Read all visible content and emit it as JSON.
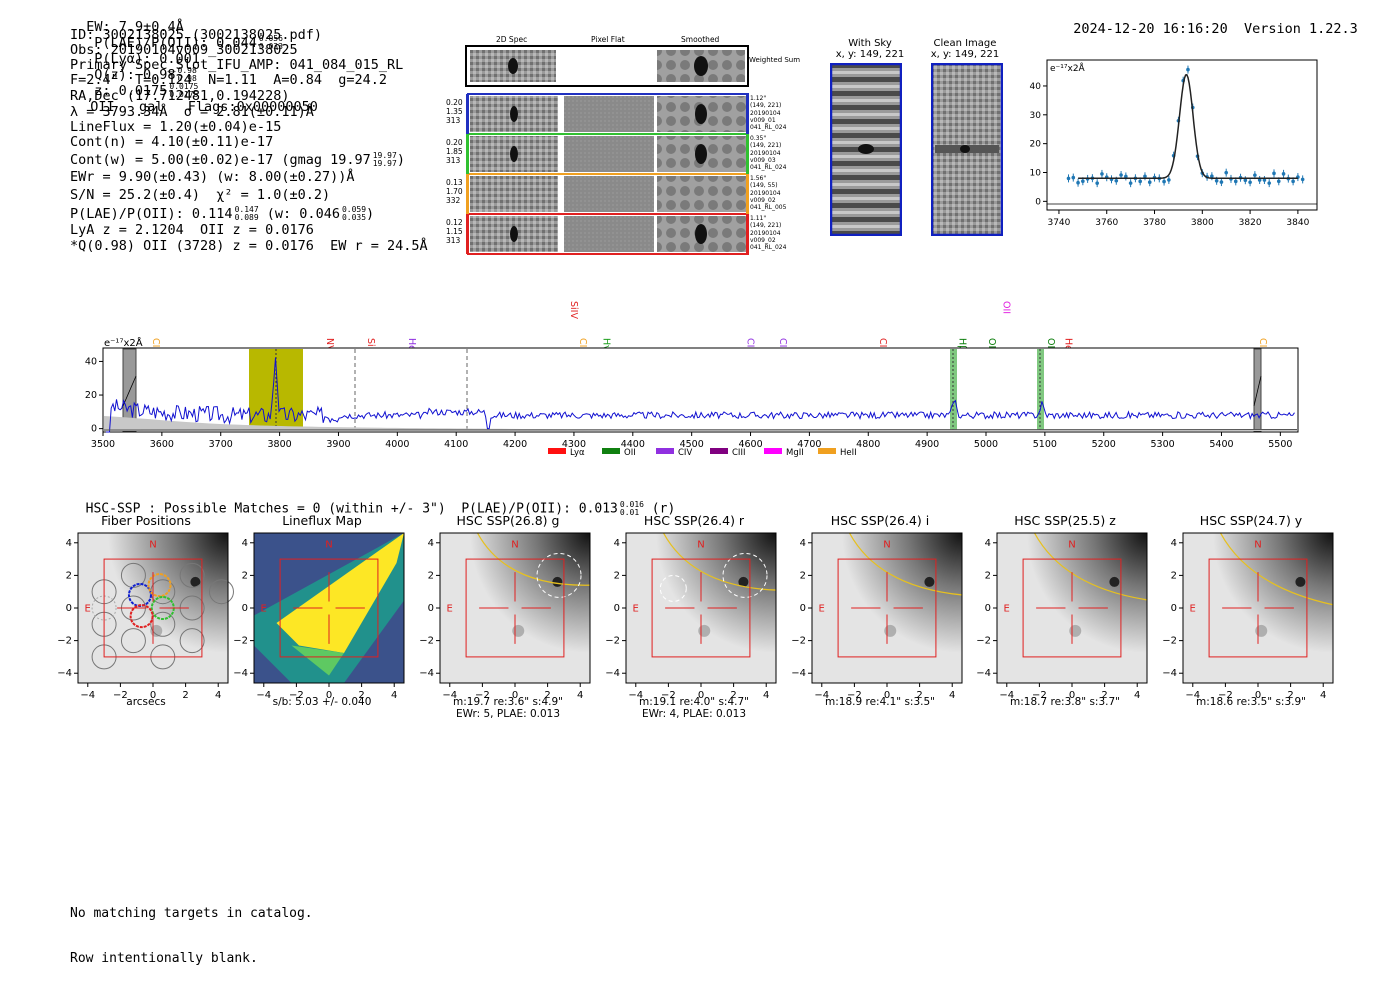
{
  "header": {
    "ew": "EW: 7.9±0.4Å",
    "plae_label": "P(LAE)/P(OII): 0.044",
    "plae_hi": "0.056",
    "plae_lo": "0.033",
    "plya": "P(Lyα): 0.001",
    "qz_label": "Q(z): 0.98",
    "qz_hi": "0.98",
    "qz_lo": "0.98",
    "z_label": "z: 0.0175",
    "z_hi": "0.0175",
    "z_lo": "0.0175",
    "z_tail": "OII   gal   Flags:0x00000050",
    "datetime": "2024-12-20 16:16:20",
    "version": "Version 1.22.3"
  },
  "info": {
    "id": "ID: 3002138025 (3002138025.pdf)",
    "obs": "Obs: 20190104v009_3002138025",
    "slot": "Primary Spec_Slot_IFU_AMP: 041_084_015_RL",
    "params": "F=2.4\"  T=0.124  N=1.11  A=0.84  g=24.2",
    "radec": "RA,Dec (17.712481,0.194228)",
    "lambda": "λ = 3793.34Å  σ = 2.81(±0.11)Å",
    "lineflux": "LineFlux = 1.20(±0.04)e-15",
    "contn": "Cont(n) = 4.10(±0.11)e-17",
    "contw": "Cont(w) = 5.00(±0.02)e-17 (gmag 19.97",
    "contw_hi": "19.97",
    "contw_lo": "19.97",
    "contw_end": ")",
    "ewr": "EWr = 9.90(±0.43) (w: 8.00(±0.27))Å",
    "sn": "S/N = 25.2(±0.4)  χ² = 1.0(±0.2)",
    "plae2": "P(LAE)/P(OII): 0.114",
    "plae2_hi": "0.147",
    "plae2_lo": "0.089",
    "plae2_w": "(w: 0.046",
    "plae2_w_hi": "0.059",
    "plae2_w_lo": "0.035",
    "plae2_end": ")",
    "lya": "LyA z = 2.1204  OII z = 0.0176",
    "q": "*Q(0.98) OII (3728) z = 0.0176  EW r = 24.5Å"
  },
  "cutouts": {
    "col_labels": [
      "2D Spec",
      "Pixel Flat",
      "Smoothed"
    ],
    "weighted_sum": "Weighted Sum",
    "rows": [
      {
        "vals": [
          "0.20",
          "1.35",
          "313"
        ],
        "meta": [
          "1.12\"",
          "(149, 221)",
          "20190104",
          "v009_01",
          "041_RL_024"
        ],
        "color": "#2030c0"
      },
      {
        "vals": [
          "0.20",
          "1.85",
          "313"
        ],
        "meta": [
          "0.35\"",
          "(149, 221)",
          "20190104",
          "v009_03",
          "041_RL_024"
        ],
        "color": "#30c030"
      },
      {
        "vals": [
          "0.13",
          "1.70",
          "332"
        ],
        "meta": [
          "1.56\"",
          "(149, 55)",
          "20190104",
          "v009_02",
          "041_RL_005"
        ],
        "color": "#f0a020"
      },
      {
        "vals": [
          "0.12",
          "1.15",
          "313"
        ],
        "meta": [
          "1.11\"",
          "(149, 221)",
          "20190104",
          "v009_02",
          "041_RL_024"
        ],
        "color": "#e02020"
      }
    ],
    "with_sky": {
      "title": "With Sky",
      "coords": "x, y: 149, 221"
    },
    "clean": {
      "title": "Clean Image",
      "coords": "x, y: 149, 221"
    }
  },
  "fit_plot": {
    "ylabel": "e⁻¹⁷x2Å",
    "xticks": [
      "3740",
      "3760",
      "3780",
      "3800",
      "3820",
      "3840"
    ],
    "yticks": [
      "0",
      "10",
      "20",
      "30",
      "40"
    ]
  },
  "spectrum": {
    "ylabel": "e⁻¹⁷x2Å",
    "xticks": [
      "3500",
      "3600",
      "3700",
      "3800",
      "3900",
      "4000",
      "4100",
      "4200",
      "4300",
      "4400",
      "4500",
      "4600",
      "4700",
      "4800",
      "4900",
      "5000",
      "5100",
      "5200",
      "5300",
      "5400",
      "5500"
    ],
    "yticks": [
      "0",
      "20",
      "40"
    ],
    "lines": [
      {
        "name": "CIV",
        "color": "#f0a020"
      },
      {
        "name": "NV",
        "color": "#e02020"
      },
      {
        "name": "SiII",
        "color": "#e02020"
      },
      {
        "name": "HeII",
        "color": "#9030e0"
      },
      {
        "name": "CIII",
        "color": "#f0a020"
      },
      {
        "name": "SiIV",
        "color": "#e02020"
      },
      {
        "name": "Hγ",
        "color": "#20a020"
      },
      {
        "name": "CII",
        "color": "#9030e0"
      },
      {
        "name": "CIII",
        "color": "#9030e0"
      },
      {
        "name": "CIV",
        "color": "#e02020"
      },
      {
        "name": "Hβ",
        "color": "#108010"
      },
      {
        "name": "OII",
        "color": "#e020e0"
      },
      {
        "name": "OIII",
        "color": "#108010"
      },
      {
        "name": "OIII",
        "color": "#108010"
      },
      {
        "name": "HeII",
        "color": "#e02020"
      },
      {
        "name": "CII",
        "color": "#f0a020"
      }
    ],
    "legend": [
      {
        "name": "Lyα",
        "color": "#ff1010"
      },
      {
        "name": "OII",
        "color": "#108010"
      },
      {
        "name": "CIV",
        "color": "#9030e0"
      },
      {
        "name": "CIII",
        "color": "#800080"
      },
      {
        "name": "MgII",
        "color": "#ff00ff"
      },
      {
        "name": "HeII",
        "color": "#f0a020"
      }
    ]
  },
  "hsc": {
    "summary": "HSC-SSP : Possible Matches = 0 (within +/- 3\")  P(LAE)/P(OII): 0.013",
    "summary_hi": "0.016",
    "summary_lo": "0.01",
    "summary_end": "(r)",
    "compass_n": "N",
    "compass_e": "E",
    "xticks": [
      "−4",
      "−2",
      "0",
      "2",
      "4"
    ],
    "yticks": [
      "4",
      "2",
      "0",
      "−2",
      "−4"
    ],
    "panels": [
      {
        "title": "Fiber Positions",
        "caption": [
          "arcsecs"
        ]
      },
      {
        "title": "Lineflux Map",
        "caption": [
          "s/b: 5.03 +/- 0.040"
        ]
      },
      {
        "title": "HSC SSP(26.8) g",
        "caption": [
          "m:19.7  re:3.6\"  s:4.9\"",
          "EWr: 5, PLAE: 0.013"
        ]
      },
      {
        "title": "HSC SSP(26.4) r",
        "caption": [
          "m:19.1  re:4.0\"  s:4.7\"",
          "EWr: 4, PLAE: 0.013"
        ]
      },
      {
        "title": "HSC SSP(26.4) i",
        "caption": [
          "m:18.9  re:4.1\"  s:3.5\""
        ]
      },
      {
        "title": "HSC SSP(25.5) z",
        "caption": [
          "m:18.7  re:3.8\"  s:3.7\""
        ]
      },
      {
        "title": "HSC SSP(24.7) y",
        "caption": [
          "m:18.6  re:3.5\"  s:3.9\""
        ]
      }
    ]
  },
  "footer": {
    "line1": "No matching targets in catalog.",
    "line2": "Row intentionally blank."
  }
}
